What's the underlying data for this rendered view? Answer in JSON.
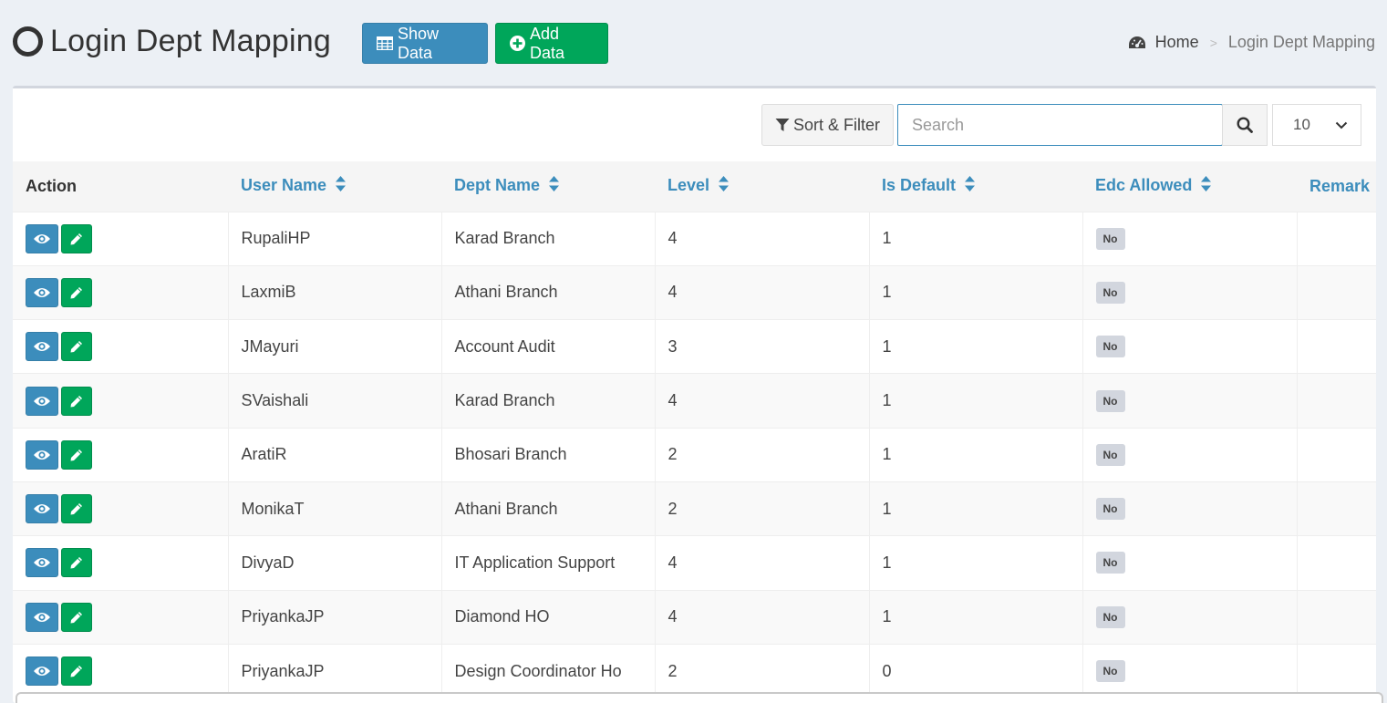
{
  "header": {
    "title": "Login Dept Mapping",
    "show_data_label": "Show Data",
    "add_data_label": "Add Data"
  },
  "breadcrumb": {
    "home": "Home",
    "separator": ">",
    "current": "Login Dept Mapping"
  },
  "toolbar": {
    "sort_filter_label": "Sort & Filter",
    "search_placeholder": "Search",
    "search_value": "",
    "page_size": "10"
  },
  "table": {
    "columns": [
      "Action",
      "User Name",
      "Dept Name",
      "Level",
      "Is Default",
      "Edc Allowed",
      "Remark"
    ],
    "rows": [
      {
        "user": "RupaliHP",
        "dept": "Karad Branch",
        "level": "4",
        "is_default": "1",
        "edc": "No",
        "remark": ""
      },
      {
        "user": "LaxmiB",
        "dept": "Athani Branch",
        "level": "4",
        "is_default": "1",
        "edc": "No",
        "remark": ""
      },
      {
        "user": "JMayuri",
        "dept": "Account Audit",
        "level": "3",
        "is_default": "1",
        "edc": "No",
        "remark": ""
      },
      {
        "user": "SVaishali",
        "dept": "Karad Branch",
        "level": "4",
        "is_default": "1",
        "edc": "No",
        "remark": ""
      },
      {
        "user": "AratiR",
        "dept": "Bhosari Branch",
        "level": "2",
        "is_default": "1",
        "edc": "No",
        "remark": ""
      },
      {
        "user": "MonikaT",
        "dept": "Athani Branch",
        "level": "2",
        "is_default": "1",
        "edc": "No",
        "remark": ""
      },
      {
        "user": "DivyaD",
        "dept": "IT Application Support",
        "level": "4",
        "is_default": "1",
        "edc": "No",
        "remark": ""
      },
      {
        "user": "PriyankaJP",
        "dept": "Diamond HO",
        "level": "4",
        "is_default": "1",
        "edc": "No",
        "remark": ""
      },
      {
        "user": "PriyankaJP",
        "dept": "Design Coordinator Ho",
        "level": "2",
        "is_default": "0",
        "edc": "No",
        "remark": ""
      }
    ]
  },
  "icons": {
    "title": "circle-o-icon",
    "show_data": "table-icon",
    "add_data": "plus-circle-icon",
    "home": "dashboard-icon",
    "sort_filter": "filter-icon",
    "search": "search-icon",
    "sort_column": "sort-icon",
    "view": "eye-icon",
    "edit": "pencil-icon"
  },
  "colors": {
    "primary": "#3c8dbc",
    "success": "#00a65a",
    "background": "#ecf0f5"
  }
}
